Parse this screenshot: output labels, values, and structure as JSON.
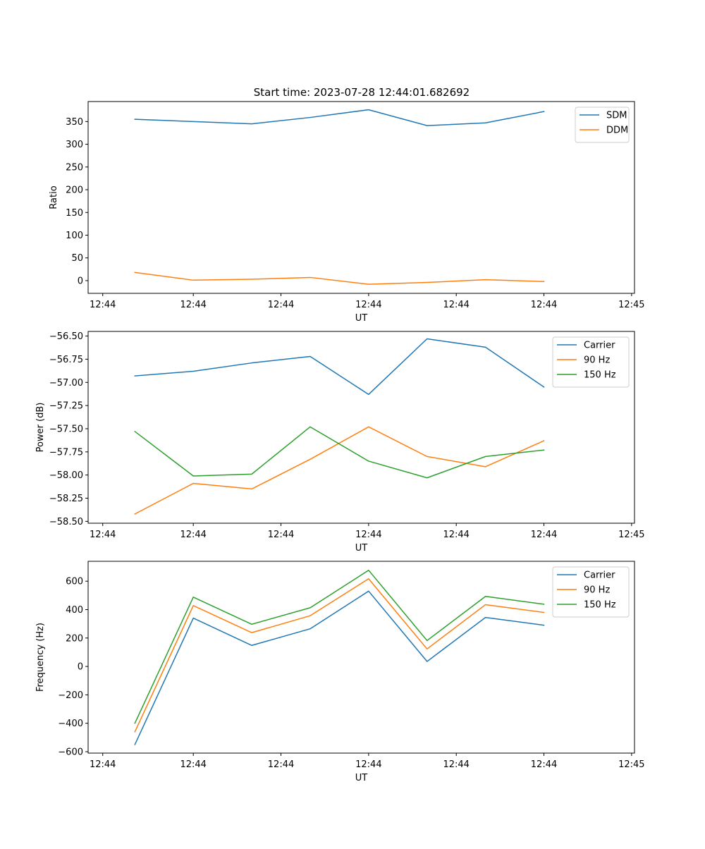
{
  "figure_title": "Start time: 2023-07-28 12:44:01.682692",
  "colors": {
    "blue": "#1f77b4",
    "orange": "#ff7f0e",
    "green": "#2ca02c"
  },
  "chart_data": [
    {
      "type": "line",
      "title": "Start time: 2023-07-28 12:44:01.682692",
      "xlabel": "UT",
      "ylabel": "Ratio",
      "x": [
        1,
        2,
        3,
        4,
        5,
        6,
        7,
        8
      ],
      "xlim": [
        0.2,
        9.55
      ],
      "xticks": [
        0.45,
        2,
        3.5,
        5,
        6.5,
        8,
        9.5
      ],
      "xtick_labels": [
        "12:44",
        "12:44",
        "12:44",
        "12:44",
        "12:44",
        "12:44",
        "12:45"
      ],
      "ylim": [
        -28,
        394
      ],
      "yticks": [
        0,
        50,
        100,
        150,
        200,
        250,
        300,
        350
      ],
      "ytick_labels": [
        "0",
        "50",
        "100",
        "150",
        "200",
        "250",
        "300",
        "350"
      ],
      "legend_position": "top-right",
      "series": [
        {
          "name": "SDM",
          "color": "#1f77b4",
          "values": [
            355,
            350,
            345,
            359,
            376,
            341,
            347,
            372
          ]
        },
        {
          "name": "DDM",
          "color": "#ff7f0e",
          "values": [
            18,
            1,
            3,
            7,
            -8,
            -4,
            2,
            -2
          ]
        }
      ]
    },
    {
      "type": "line",
      "title": "",
      "xlabel": "UT",
      "ylabel": "Power (dB)",
      "x": [
        1,
        2,
        3,
        4,
        5,
        6,
        7,
        8
      ],
      "xlim": [
        0.2,
        9.55
      ],
      "xticks": [
        0.45,
        2,
        3.5,
        5,
        6.5,
        8,
        9.5
      ],
      "xtick_labels": [
        "12:44",
        "12:44",
        "12:44",
        "12:44",
        "12:44",
        "12:44",
        "12:45"
      ],
      "ylim": [
        -58.52,
        -56.45
      ],
      "yticks": [
        -58.5,
        -58.25,
        -58.0,
        -57.75,
        -57.5,
        -57.25,
        -57.0,
        -56.75,
        -56.5
      ],
      "ytick_labels": [
        "−58.50",
        "−58.25",
        "−58.00",
        "−57.75",
        "−57.50",
        "−57.25",
        "−57.00",
        "−56.75",
        "−56.50"
      ],
      "legend_position": "top-right",
      "series": [
        {
          "name": "Carrier",
          "color": "#1f77b4",
          "values": [
            -56.93,
            -56.88,
            -56.79,
            -56.72,
            -57.13,
            -56.53,
            -56.62,
            -57.05
          ]
        },
        {
          "name": "90 Hz",
          "color": "#ff7f0e",
          "values": [
            -58.42,
            -58.09,
            -58.15,
            -57.83,
            -57.48,
            -57.8,
            -57.91,
            -57.63
          ]
        },
        {
          "name": "150 Hz",
          "color": "#2ca02c",
          "values": [
            -57.53,
            -58.01,
            -57.99,
            -57.48,
            -57.85,
            -58.03,
            -57.8,
            -57.73
          ]
        }
      ]
    },
    {
      "type": "line",
      "title": "",
      "xlabel": "UT",
      "ylabel": "Frequency (Hz)",
      "x": [
        1,
        2,
        3,
        4,
        5,
        6,
        7,
        8
      ],
      "xlim": [
        0.2,
        9.55
      ],
      "xticks": [
        0.45,
        2,
        3.5,
        5,
        6.5,
        8,
        9.5
      ],
      "xtick_labels": [
        "12:44",
        "12:44",
        "12:44",
        "12:44",
        "12:44",
        "12:44",
        "12:45"
      ],
      "ylim": [
        -610,
        740
      ],
      "yticks": [
        -600,
        -400,
        -200,
        0,
        200,
        400,
        600
      ],
      "ytick_labels": [
        "−600",
        "−400",
        "−200",
        "0",
        "200",
        "400",
        "600"
      ],
      "legend_position": "top-right",
      "series": [
        {
          "name": "Carrier",
          "color": "#1f77b4",
          "values": [
            -550,
            340,
            148,
            265,
            530,
            35,
            345,
            290
          ]
        },
        {
          "name": "90 Hz",
          "color": "#ff7f0e",
          "values": [
            -460,
            428,
            238,
            357,
            617,
            123,
            435,
            380
          ]
        },
        {
          "name": "150 Hz",
          "color": "#2ca02c",
          "values": [
            -400,
            488,
            297,
            413,
            677,
            182,
            493,
            438
          ]
        }
      ]
    }
  ]
}
